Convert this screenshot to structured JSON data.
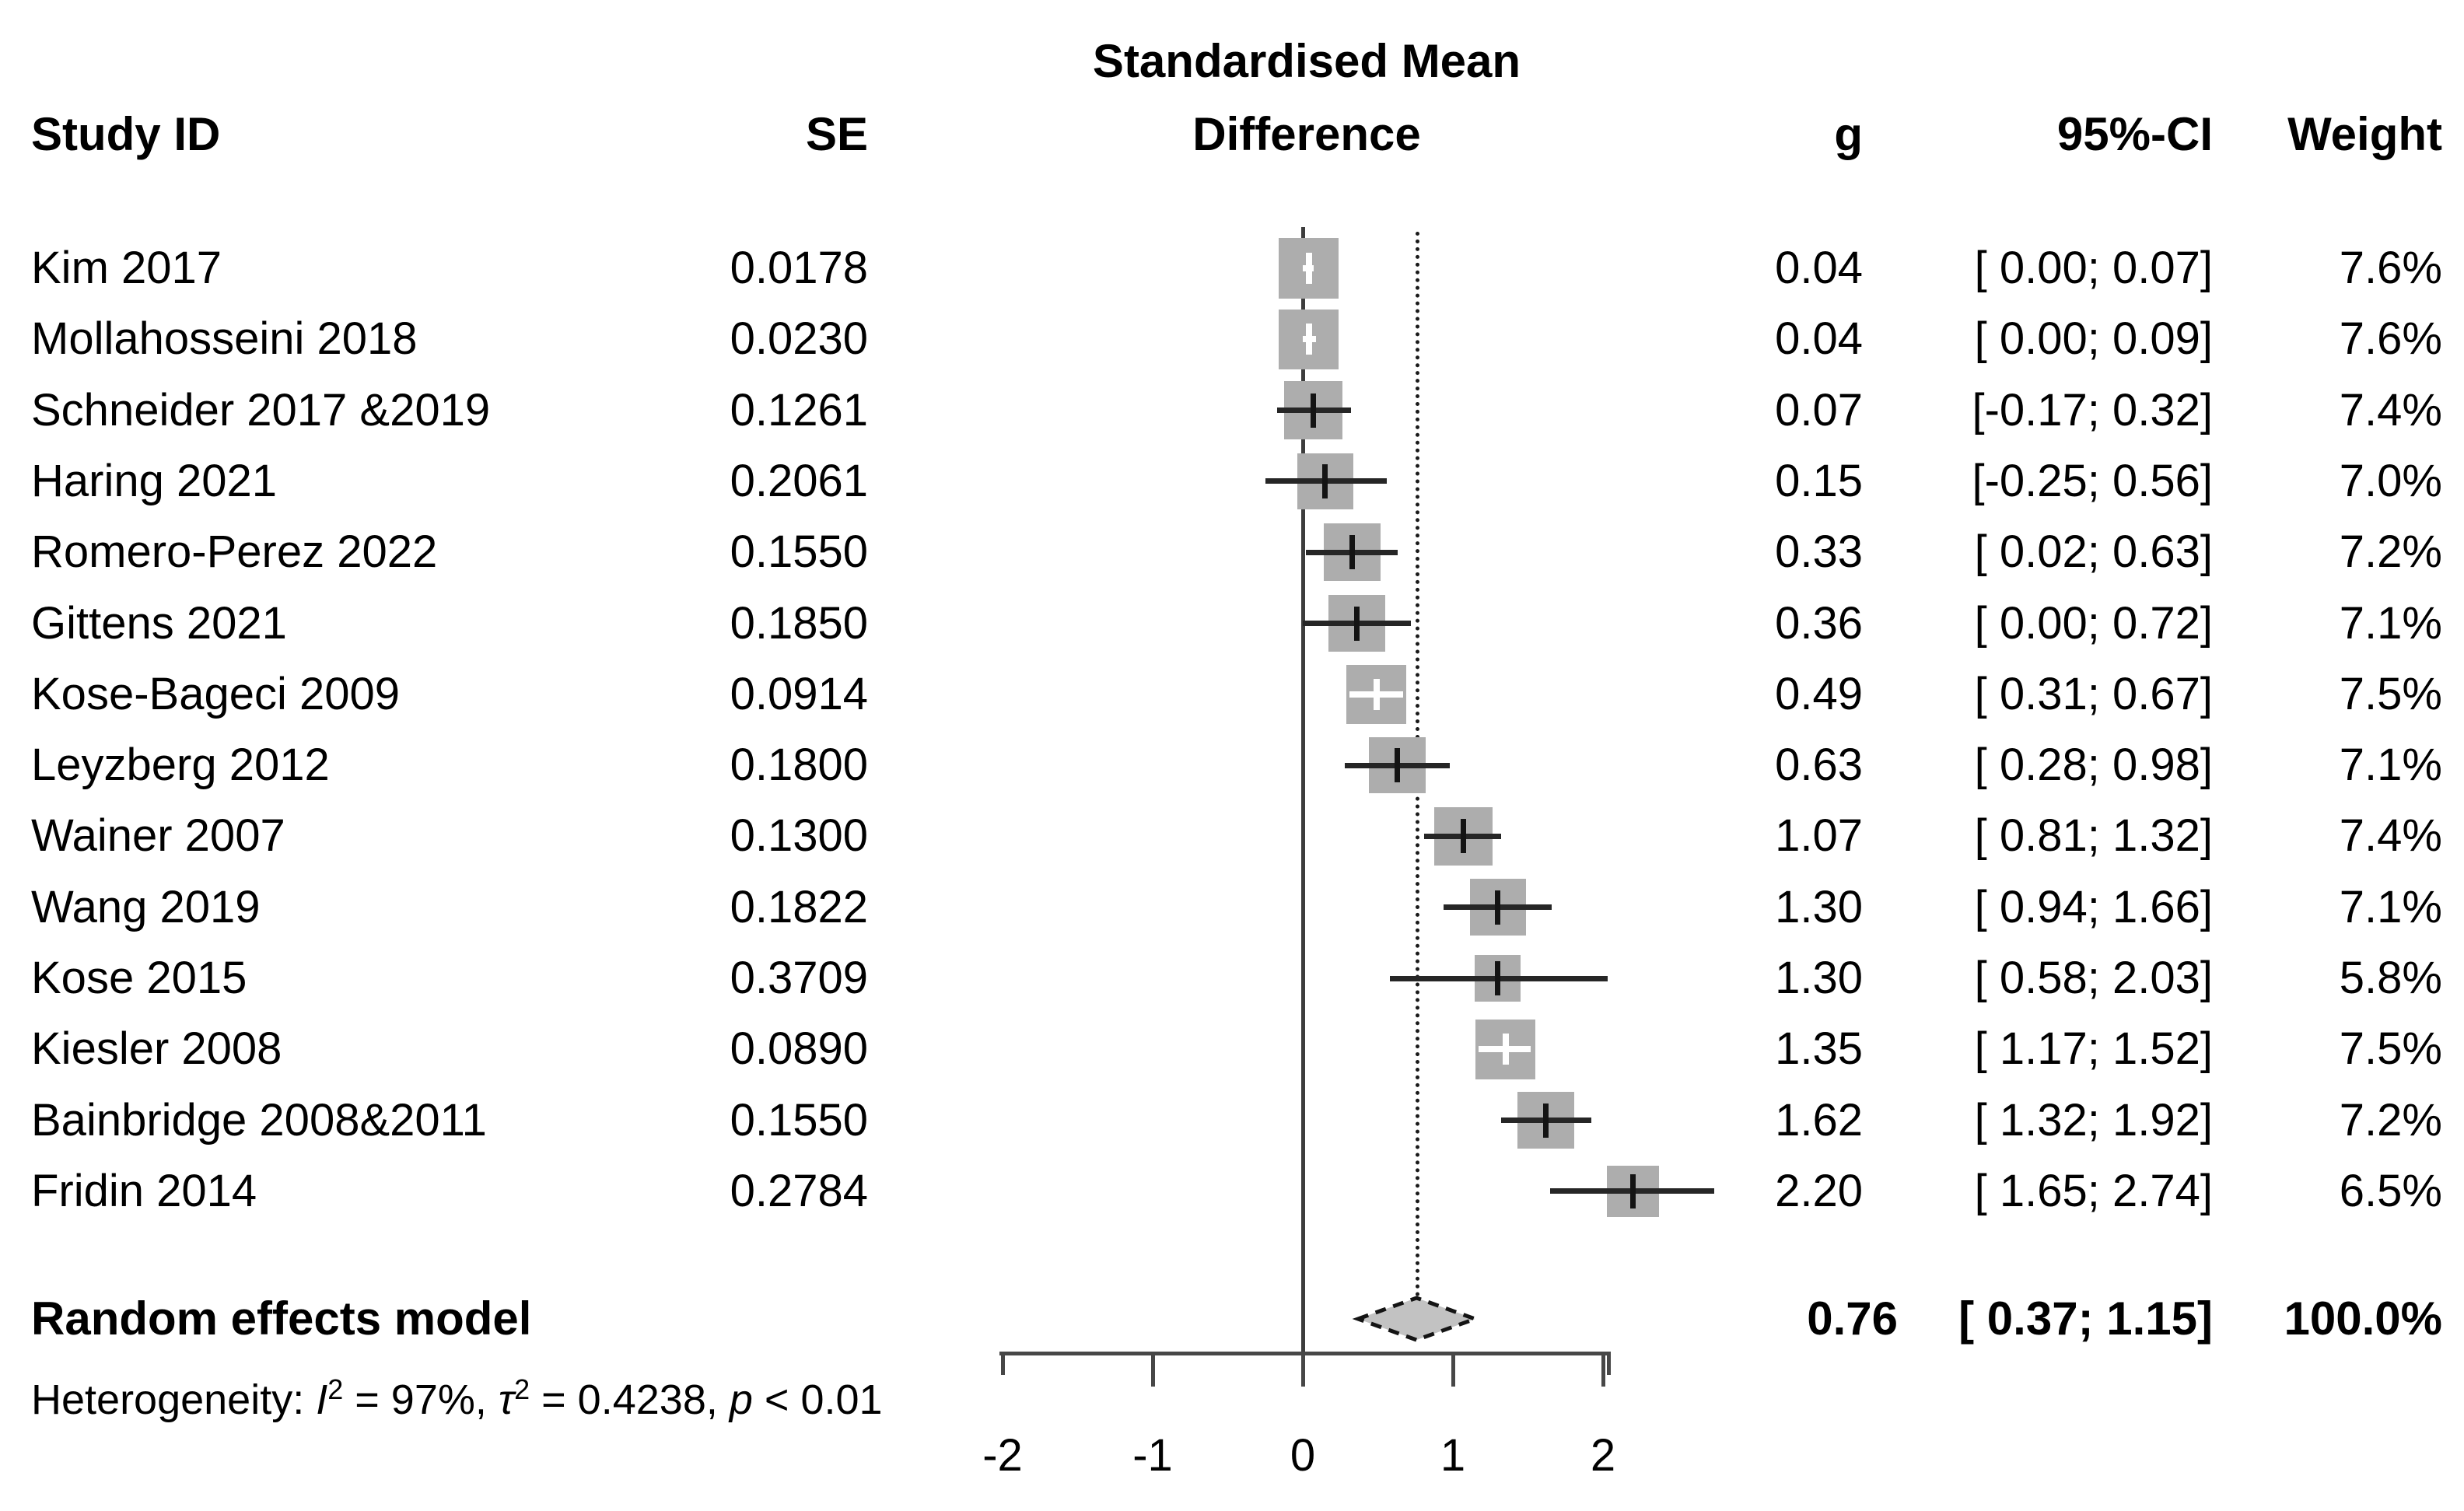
{
  "header": {
    "col_study": "Study ID",
    "col_se": "SE",
    "col_effect_line1": "Standardised Mean",
    "col_effect_line2": "Difference",
    "col_g": "g",
    "col_ci": "95%-CI",
    "col_weight": "Weight"
  },
  "chart_data": {
    "type": "scatter",
    "subtype": "forest-plot",
    "xlabel": "Standardised Mean Difference",
    "effect_measure": "g",
    "reference_value": 0,
    "pooled_value": 0.76,
    "axis_ticks": [
      {
        "label": "-2",
        "value": -2
      },
      {
        "label": "-1",
        "value": -1
      },
      {
        "label": "0",
        "value": 0
      },
      {
        "label": "1",
        "value": 1
      },
      {
        "label": "2",
        "value": 2
      }
    ],
    "studies": [
      {
        "name": "Kim 2017",
        "se": "0.0178",
        "g": "0.04",
        "ci": "[ 0.00; 0.07]",
        "weight": "7.6%",
        "g_val": 0.04,
        "ci_low": 0.0,
        "ci_high": 0.07,
        "weight_val": 7.6
      },
      {
        "name": "Mollahosseini 2018",
        "se": "0.0230",
        "g": "0.04",
        "ci": "[ 0.00; 0.09]",
        "weight": "7.6%",
        "g_val": 0.04,
        "ci_low": 0.0,
        "ci_high": 0.09,
        "weight_val": 7.6
      },
      {
        "name": "Schneider 2017 &2019",
        "se": "0.1261",
        "g": "0.07",
        "ci": "[-0.17; 0.32]",
        "weight": "7.4%",
        "g_val": 0.07,
        "ci_low": -0.17,
        "ci_high": 0.32,
        "weight_val": 7.4
      },
      {
        "name": "Haring 2021",
        "se": "0.2061",
        "g": "0.15",
        "ci": "[-0.25; 0.56]",
        "weight": "7.0%",
        "g_val": 0.15,
        "ci_low": -0.25,
        "ci_high": 0.56,
        "weight_val": 7.0
      },
      {
        "name": "Romero-Perez 2022",
        "se": "0.1550",
        "g": "0.33",
        "ci": "[ 0.02; 0.63]",
        "weight": "7.2%",
        "g_val": 0.33,
        "ci_low": 0.02,
        "ci_high": 0.63,
        "weight_val": 7.2
      },
      {
        "name": "Gittens 2021",
        "se": "0.1850",
        "g": "0.36",
        "ci": "[ 0.00; 0.72]",
        "weight": "7.1%",
        "g_val": 0.36,
        "ci_low": 0.0,
        "ci_high": 0.72,
        "weight_val": 7.1
      },
      {
        "name": "Kose-Bageci 2009",
        "se": "0.0914",
        "g": "0.49",
        "ci": "[ 0.31; 0.67]",
        "weight": "7.5%",
        "g_val": 0.49,
        "ci_low": 0.31,
        "ci_high": 0.67,
        "weight_val": 7.5
      },
      {
        "name": "Leyzberg 2012",
        "se": "0.1800",
        "g": "0.63",
        "ci": "[ 0.28; 0.98]",
        "weight": "7.1%",
        "g_val": 0.63,
        "ci_low": 0.28,
        "ci_high": 0.98,
        "weight_val": 7.1
      },
      {
        "name": "Wainer 2007",
        "se": "0.1300",
        "g": "1.07",
        "ci": "[ 0.81; 1.32]",
        "weight": "7.4%",
        "g_val": 1.07,
        "ci_low": 0.81,
        "ci_high": 1.32,
        "weight_val": 7.4
      },
      {
        "name": "Wang 2019",
        "se": "0.1822",
        "g": "1.30",
        "ci": "[ 0.94; 1.66]",
        "weight": "7.1%",
        "g_val": 1.3,
        "ci_low": 0.94,
        "ci_high": 1.66,
        "weight_val": 7.1
      },
      {
        "name": "Kose 2015",
        "se": "0.3709",
        "g": "1.30",
        "ci": "[ 0.58; 2.03]",
        "weight": "5.8%",
        "g_val": 1.3,
        "ci_low": 0.58,
        "ci_high": 2.03,
        "weight_val": 5.8
      },
      {
        "name": "Kiesler 2008",
        "se": "0.0890",
        "g": "1.35",
        "ci": "[ 1.17; 1.52]",
        "weight": "7.5%",
        "g_val": 1.35,
        "ci_low": 1.17,
        "ci_high": 1.52,
        "weight_val": 7.5
      },
      {
        "name": "Bainbridge 2008&2011",
        "se": "0.1550",
        "g": "1.62",
        "ci": "[ 1.32; 1.92]",
        "weight": "7.2%",
        "g_val": 1.62,
        "ci_low": 1.32,
        "ci_high": 1.92,
        "weight_val": 7.2
      },
      {
        "name": "Fridin 2014",
        "se": "0.2784",
        "g": "2.20",
        "ci": "[ 1.65; 2.74]",
        "weight": "6.5%",
        "g_val": 2.2,
        "ci_low": 1.65,
        "ci_high": 2.74,
        "weight_val": 6.5
      }
    ],
    "summary": {
      "label": "Random effects model",
      "g": "0.76",
      "ci": "[ 0.37; 1.15]",
      "weight": "100.0%",
      "g_val": 0.76,
      "ci_low": 0.37,
      "ci_high": 1.15
    },
    "heterogeneity": {
      "I2_percent": 97,
      "tau2": 0.4238,
      "p_text": "< 0.01"
    }
  },
  "heterogeneity_line": {
    "prefix": "Heterogeneity: ",
    "i_sym": "I",
    "i_sup": "2",
    "i_rest": " = 97%, ",
    "tau_sym": "τ",
    "tau_sup": "2",
    "tau_rest": " = 0.4238, ",
    "p_sym": "p",
    "p_rest": " < 0.01"
  },
  "colors": {
    "square": "#adadad",
    "diamond_fill": "#c2c2c2",
    "diamond_stroke": "#141414",
    "whisker": "#262626",
    "zero_line": "#3d3d3d",
    "axis": "#474747",
    "text": "#000000"
  }
}
